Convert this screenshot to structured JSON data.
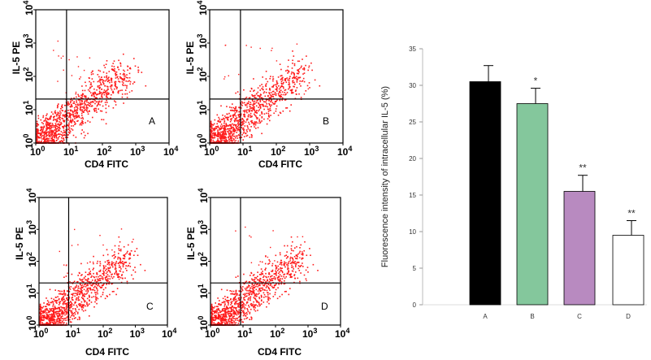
{
  "chart_data": [
    {
      "type": "scatter",
      "panel_label": "A",
      "xlabel": "CD4 FITC",
      "ylabel": "IL-5 PE",
      "x_ticks": [
        "0",
        "1",
        "2",
        "3",
        "4"
      ],
      "y_ticks": [
        "0",
        "1",
        "2",
        "3",
        "4"
      ],
      "scale": "log"
    },
    {
      "type": "scatter",
      "panel_label": "B",
      "xlabel": "CD4 FITC",
      "ylabel": "IL-5 PE",
      "x_ticks": [
        "0",
        "1",
        "2",
        "3",
        "4"
      ],
      "y_ticks": [
        "0",
        "1",
        "2",
        "3",
        "4"
      ],
      "scale": "log"
    },
    {
      "type": "scatter",
      "panel_label": "C",
      "xlabel": "CD4 FITC",
      "ylabel": "IL-5 PE",
      "x_ticks": [
        "0",
        "1",
        "2",
        "3",
        "4"
      ],
      "y_ticks": [
        "0",
        "1",
        "2",
        "3",
        "4"
      ],
      "scale": "log"
    },
    {
      "type": "scatter",
      "panel_label": "D",
      "xlabel": "CD4 FITC",
      "ylabel": "IL-5 PE",
      "x_ticks": [
        "0",
        "1",
        "2",
        "3",
        "4"
      ],
      "y_ticks": [
        "0",
        "1",
        "2",
        "3",
        "4"
      ],
      "scale": "log"
    },
    {
      "type": "bar",
      "categories": [
        "A",
        "B",
        "C",
        "D"
      ],
      "values": [
        30.5,
        27.5,
        15.5,
        9.5
      ],
      "errors": [
        2.2,
        2.1,
        2.2,
        2.0
      ],
      "significance": [
        "",
        "*",
        "**",
        "**"
      ],
      "colors": [
        "#000000",
        "#84c79c",
        "#b88ac0",
        "#ffffff"
      ],
      "ylabel": "Fluorescence intensity of intracellular IL-5 (%)",
      "ylim": [
        0,
        35
      ],
      "y_ticks": [
        "0",
        "5",
        "10",
        "15",
        "20",
        "25",
        "30",
        "35"
      ]
    }
  ]
}
